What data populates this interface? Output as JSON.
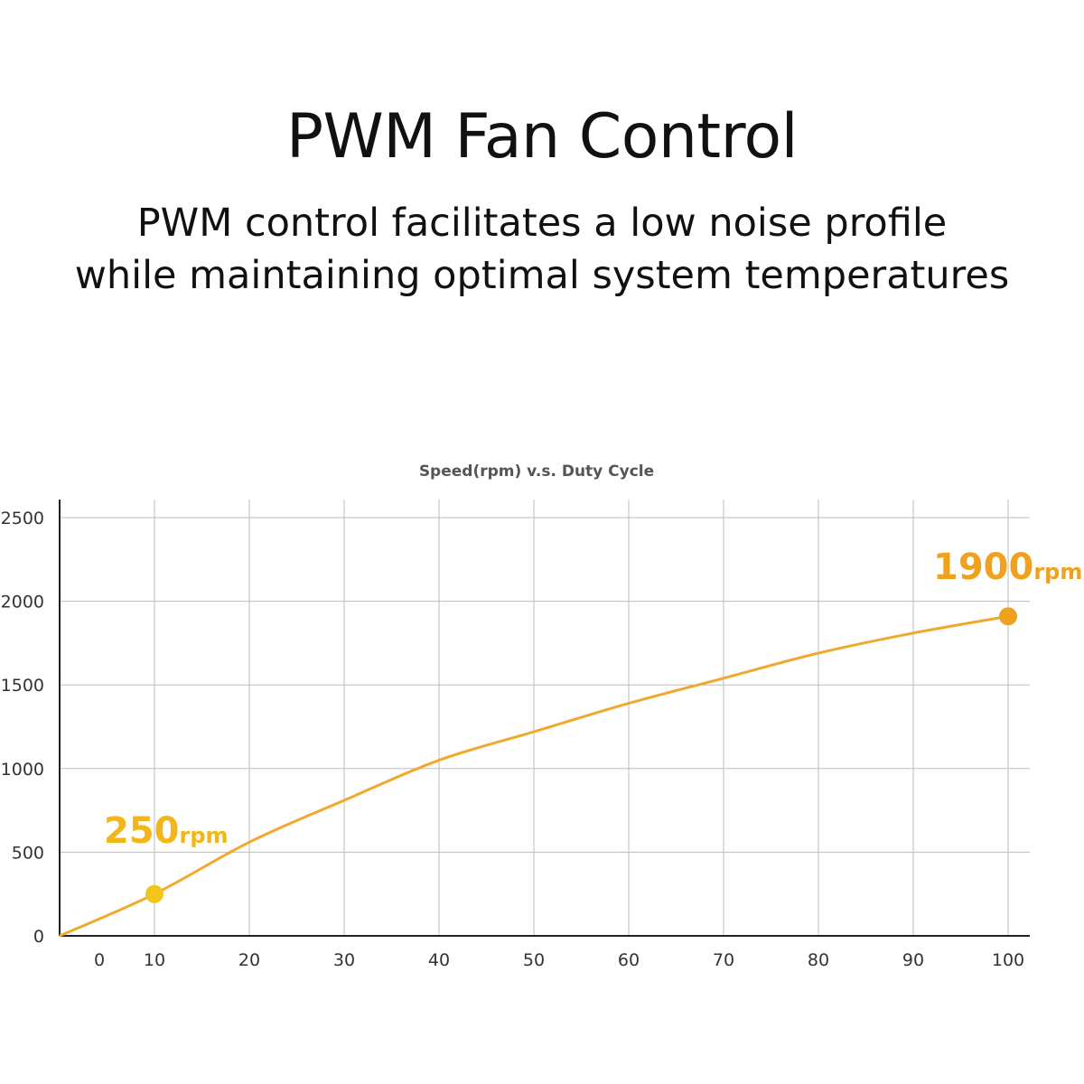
{
  "header": {
    "title": "PWM Fan Control",
    "subtitle_line1": "PWM control facilitates a low noise profile",
    "subtitle_line2": "while maintaining optimal system temperatures"
  },
  "colors": {
    "curve": "#f0a92d",
    "point_low": "#f2c51a",
    "point_high": "#f0a21e",
    "label_low": "#f2b51a",
    "label_high": "#f0a21e",
    "grid": "#bdbdbd",
    "axis": "#222222"
  },
  "chart_data": {
    "type": "line",
    "title": "Speed(rpm)  v.s.  Duty Cycle",
    "xlabel": "",
    "ylabel": "",
    "x_ticks": [
      0,
      10,
      20,
      30,
      40,
      50,
      60,
      70,
      80,
      90,
      100
    ],
    "y_ticks": [
      0,
      500,
      1000,
      1500,
      2000,
      2500
    ],
    "ylim": [
      0,
      2500
    ],
    "grid": true,
    "series": [
      {
        "x": [
          0,
          10,
          20,
          30,
          40,
          50,
          60,
          70,
          80,
          90,
          100
        ],
        "values": [
          0,
          250,
          560,
          810,
          1050,
          1220,
          1390,
          1540,
          1690,
          1810,
          1910
        ]
      }
    ],
    "annotations": [
      {
        "x": 10,
        "y": 250,
        "number": "250",
        "unit": "rpm"
      },
      {
        "x": 100,
        "y": 1910,
        "number": "1900",
        "unit": "rpm"
      }
    ]
  }
}
